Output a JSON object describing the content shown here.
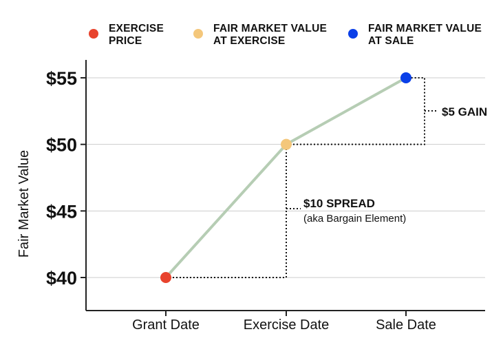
{
  "legend": [
    {
      "lines": [
        "EXERCISE",
        "PRICE"
      ],
      "color": "#e8432d"
    },
    {
      "lines": [
        "FAIR MARKET VALUE",
        "AT EXERCISE"
      ],
      "color": "#f4c77b"
    },
    {
      "lines": [
        "FAIR MARKET VALUE",
        "AT SALE"
      ],
      "color": "#0a3fe8"
    }
  ],
  "chart_data": {
    "type": "line",
    "ylabel": "Fair Market Value",
    "xlabel": "",
    "categories": [
      "Grant Date",
      "Exercise Date",
      "Sale Date"
    ],
    "values": [
      40,
      50,
      55
    ],
    "point_colors": [
      "#e8432d",
      "#f4c77b",
      "#0a3fe8"
    ],
    "line_color": "#b6cdb4",
    "ylim": [
      38.5,
      57
    ],
    "yticks": [
      40,
      45,
      50,
      55
    ],
    "ytick_labels": [
      "$40",
      "$45",
      "$50",
      "$55"
    ],
    "grid": true,
    "annotations": {
      "spread": {
        "title": "$10 SPREAD",
        "subtitle": "(aka Bargain Element)"
      },
      "gain": {
        "title": "$5 GAIN"
      }
    }
  }
}
